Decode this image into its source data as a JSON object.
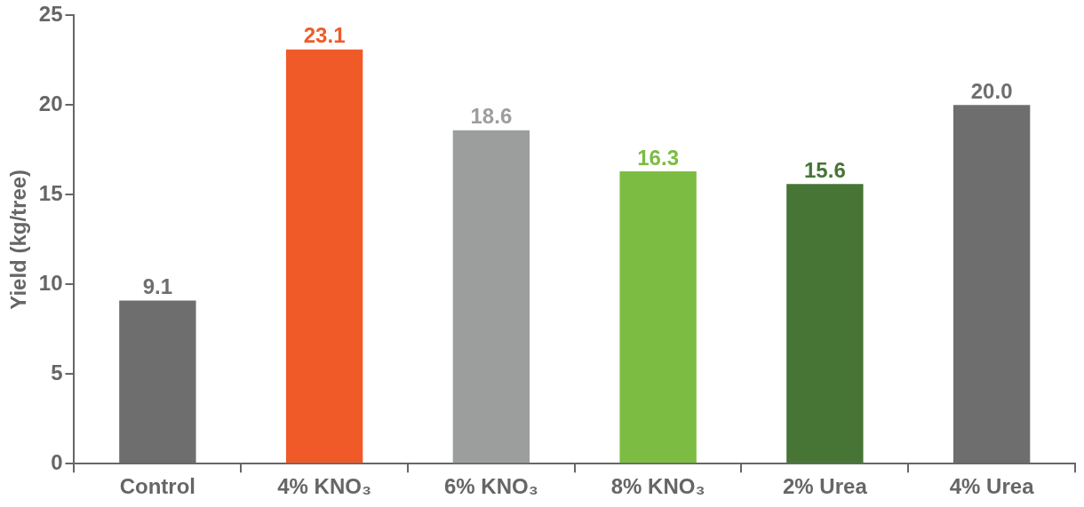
{
  "chart_data": {
    "type": "bar",
    "ylabel": "Yield (kg/tree)",
    "categories": [
      "Control",
      "4% KNO₃",
      "6% KNO₃",
      "8% KNO₃",
      "2% Urea",
      "4% Urea"
    ],
    "values": [
      9.1,
      23.1,
      18.6,
      16.3,
      15.6,
      20.0
    ],
    "value_labels": [
      "9.1",
      "23.1",
      "18.6",
      "16.3",
      "15.6",
      "20.0"
    ],
    "colors": [
      "#6d6e6d",
      "#f05a28",
      "#9c9e9e",
      "#7cbc42",
      "#467535",
      "#6d6e6d"
    ],
    "ylim": [
      0,
      25
    ],
    "yticks": [
      0,
      5,
      10,
      15,
      20,
      25
    ]
  }
}
